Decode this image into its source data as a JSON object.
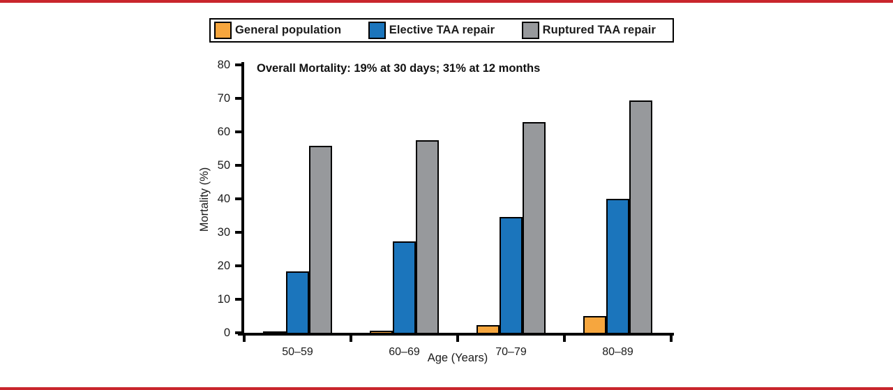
{
  "frame": {
    "rule_color": "#C9252C",
    "background": "#FFFFFF"
  },
  "legend": {
    "items": [
      {
        "label": "General population",
        "color": "#F6A63E"
      },
      {
        "label": "Elective TAA repair",
        "color": "#1B75BC"
      },
      {
        "label": "Ruptured TAA repair",
        "color": "#97999C"
      }
    ]
  },
  "chart_data": {
    "type": "bar",
    "categories": [
      "50–59",
      "60–69",
      "70–79",
      "80–89"
    ],
    "series": [
      {
        "name": "General population",
        "color": "#F6A63E",
        "values": [
          0.4,
          0.6,
          2.3,
          5.0
        ]
      },
      {
        "name": "Elective TAA repair",
        "color": "#1B75BC",
        "values": [
          18.3,
          27.2,
          34.5,
          40.1
        ]
      },
      {
        "name": "Ruptured TAA repair",
        "color": "#97999C",
        "values": [
          55.9,
          57.5,
          62.9,
          69.3
        ]
      }
    ],
    "title": "",
    "annotation": "Overall Mortality: 19% at 30 days; 31% at 12 months",
    "xlabel": "Age (Years)",
    "ylabel": "Mortality (%)",
    "ylim": [
      0,
      80
    ],
    "yticks": [
      0,
      10,
      20,
      30,
      40,
      50,
      60,
      70,
      80
    ],
    "grid": false,
    "legend_position": "top",
    "bar_outline_color": "#000000"
  }
}
